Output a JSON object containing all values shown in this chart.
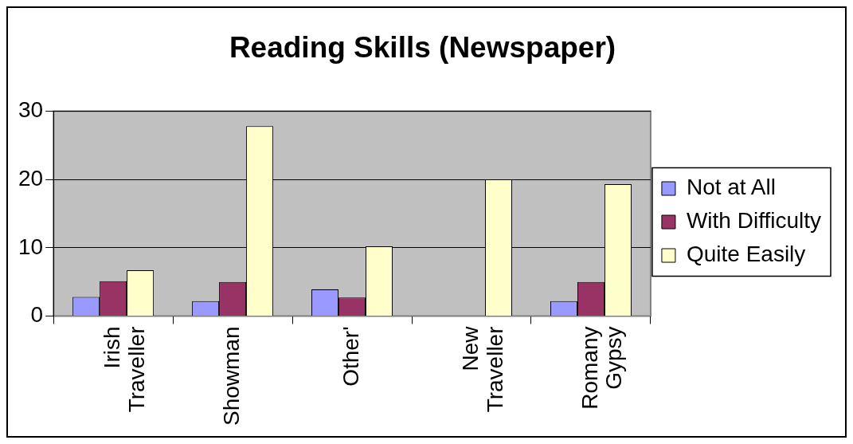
{
  "chart_data": {
    "type": "bar",
    "title": "Reading Skills (Newspaper)",
    "categories": [
      "Irish Traveller",
      "Showman",
      "Other'",
      "New Traveller",
      "Romany Gypsy"
    ],
    "series": [
      {
        "name": "Not at All",
        "color": "#9999ff",
        "values": [
          2.8,
          2.2,
          3.9,
          0,
          2.2
        ]
      },
      {
        "name": "With Difficulty",
        "color": "#993366",
        "values": [
          5.1,
          5,
          2.7,
          0,
          5
        ]
      },
      {
        "name": "Quite Easily",
        "color": "#ffffcc",
        "values": [
          6.7,
          27.8,
          10.2,
          20,
          19.3
        ]
      }
    ],
    "ylim": [
      0,
      30
    ],
    "yticks": [
      0,
      10,
      20,
      30
    ],
    "grid": "y",
    "legend": "right"
  }
}
